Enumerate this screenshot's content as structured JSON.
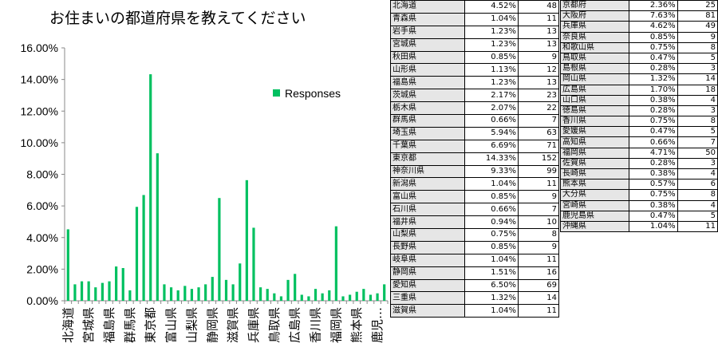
{
  "chart_data": {
    "type": "bar",
    "title": "お住まいの都道府県を教えてください",
    "legend": {
      "entries": [
        "Responses"
      ],
      "placement": "right"
    },
    "color": "#00c060",
    "ylim": [
      0,
      16
    ],
    "y_ticks": [
      "0.00%",
      "2.00%",
      "4.00%",
      "6.00%",
      "8.00%",
      "10.00%",
      "12.00%",
      "14.00%",
      "16.00%"
    ],
    "grid": false,
    "categories": [
      "北海道",
      "青森県",
      "岩手県",
      "宮城県",
      "秋田県",
      "山形県",
      "福島県",
      "茨城県",
      "栃木県",
      "群馬県",
      "埼玉県",
      "千葉県",
      "東京都",
      "神奈川県",
      "新潟県",
      "富山県",
      "石川県",
      "福井県",
      "山梨県",
      "長野県",
      "岐阜県",
      "静岡県",
      "愛知県",
      "三重県",
      "滋賀県",
      "京都府",
      "大阪府",
      "兵庫県",
      "奈良県",
      "和歌山県",
      "鳥取県",
      "島根県",
      "岡山県",
      "広島県",
      "山口県",
      "徳島県",
      "香川県",
      "愛媛県",
      "高知県",
      "福岡県",
      "佐賀県",
      "長崎県",
      "熊本県",
      "大分県",
      "宮崎県",
      "鹿児島県",
      "沖縄県"
    ],
    "x_tick_labels": [
      "北海道",
      "宮城県",
      "福島県",
      "群馬県",
      "東京都",
      "富山県",
      "山梨県",
      "静岡県",
      "滋賀県",
      "兵庫県",
      "鳥取県",
      "広島県",
      "香川県",
      "福岡県",
      "熊本県",
      "鹿児…"
    ],
    "series": [
      {
        "name": "Responses",
        "values": [
          4.52,
          1.04,
          1.23,
          1.23,
          0.85,
          1.13,
          1.23,
          2.17,
          2.07,
          0.66,
          5.94,
          6.69,
          14.33,
          9.33,
          1.04,
          0.85,
          0.66,
          0.94,
          0.75,
          0.85,
          1.04,
          1.51,
          6.5,
          1.32,
          1.04,
          2.36,
          7.63,
          4.62,
          0.85,
          0.75,
          0.47,
          0.28,
          1.32,
          1.7,
          0.38,
          0.28,
          0.75,
          0.47,
          0.66,
          4.71,
          0.28,
          0.38,
          0.57,
          0.75,
          0.38,
          0.47,
          1.04
        ]
      }
    ]
  },
  "table": {
    "rows": [
      [
        "北海道",
        "4.52%",
        "48"
      ],
      [
        "青森県",
        "1.04%",
        "11"
      ],
      [
        "岩手県",
        "1.23%",
        "13"
      ],
      [
        "宮城県",
        "1.23%",
        "13"
      ],
      [
        "秋田県",
        "0.85%",
        "9"
      ],
      [
        "山形県",
        "1.13%",
        "12"
      ],
      [
        "福島県",
        "1.23%",
        "13"
      ],
      [
        "茨城県",
        "2.17%",
        "23"
      ],
      [
        "栃木県",
        "2.07%",
        "22"
      ],
      [
        "群馬県",
        "0.66%",
        "7"
      ],
      [
        "埼玉県",
        "5.94%",
        "63"
      ],
      [
        "千葉県",
        "6.69%",
        "71"
      ],
      [
        "東京都",
        "14.33%",
        "152"
      ],
      [
        "神奈川県",
        "9.33%",
        "99"
      ],
      [
        "新潟県",
        "1.04%",
        "11"
      ],
      [
        "富山県",
        "0.85%",
        "9"
      ],
      [
        "石川県",
        "0.66%",
        "7"
      ],
      [
        "福井県",
        "0.94%",
        "10"
      ],
      [
        "山梨県",
        "0.75%",
        "8"
      ],
      [
        "長野県",
        "0.85%",
        "9"
      ],
      [
        "岐阜県",
        "1.04%",
        "11"
      ],
      [
        "静岡県",
        "1.51%",
        "16"
      ],
      [
        "愛知県",
        "6.50%",
        "69"
      ],
      [
        "三重県",
        "1.32%",
        "14"
      ],
      [
        "滋賀県",
        "1.04%",
        "11"
      ],
      [
        "京都府",
        "2.36%",
        "25"
      ],
      [
        "大阪府",
        "7.63%",
        "81"
      ],
      [
        "兵庫県",
        "4.62%",
        "49"
      ],
      [
        "奈良県",
        "0.85%",
        "9"
      ],
      [
        "和歌山県",
        "0.75%",
        "8"
      ],
      [
        "鳥取県",
        "0.47%",
        "5"
      ],
      [
        "島根県",
        "0.28%",
        "3"
      ],
      [
        "岡山県",
        "1.32%",
        "14"
      ],
      [
        "広島県",
        "1.70%",
        "18"
      ],
      [
        "山口県",
        "0.38%",
        "4"
      ],
      [
        "徳島県",
        "0.28%",
        "3"
      ],
      [
        "香川県",
        "0.75%",
        "8"
      ],
      [
        "愛媛県",
        "0.47%",
        "5"
      ],
      [
        "高知県",
        "0.66%",
        "7"
      ],
      [
        "福岡県",
        "4.71%",
        "50"
      ],
      [
        "佐賀県",
        "0.28%",
        "3"
      ],
      [
        "長崎県",
        "0.38%",
        "4"
      ],
      [
        "熊本県",
        "0.57%",
        "6"
      ],
      [
        "大分県",
        "0.75%",
        "8"
      ],
      [
        "宮崎県",
        "0.38%",
        "4"
      ],
      [
        "鹿児島県",
        "0.47%",
        "5"
      ],
      [
        "沖縄県",
        "1.04%",
        "11"
      ]
    ]
  }
}
